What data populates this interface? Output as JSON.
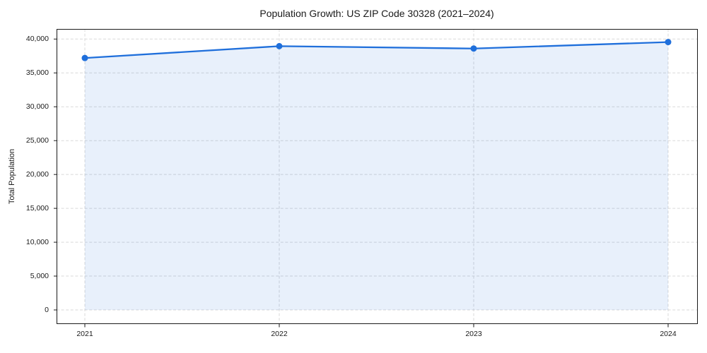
{
  "chart_data": {
    "type": "area",
    "title": "Population Growth: US ZIP Code 30328 (2021–2024)",
    "xlabel": "",
    "ylabel": "Total Population",
    "x": [
      2021,
      2022,
      2023,
      2024
    ],
    "xtick_labels": [
      "2021",
      "2022",
      "2023",
      "2024"
    ],
    "series": [
      {
        "name": "Total Population",
        "values": [
          37200,
          38950,
          38600,
          39550
        ]
      }
    ],
    "ytick_values": [
      0,
      5000,
      10000,
      15000,
      20000,
      25000,
      30000,
      35000,
      40000
    ],
    "ytick_labels": [
      "0",
      "5,000",
      "10,000",
      "15,000",
      "20,000",
      "25,000",
      "30,000",
      "35,000",
      "40,000"
    ],
    "ylim": [
      0,
      40000
    ],
    "grid": true,
    "legend_position": "none",
    "colors": {
      "line": "#1f6fdb",
      "marker": "#1f6fdb",
      "fill": "rgba(31,111,219,0.10)",
      "grid": "#d9d9d9",
      "spine": "#1a1a1a",
      "text": "#1a1a1a",
      "background": "#ffffff"
    }
  }
}
